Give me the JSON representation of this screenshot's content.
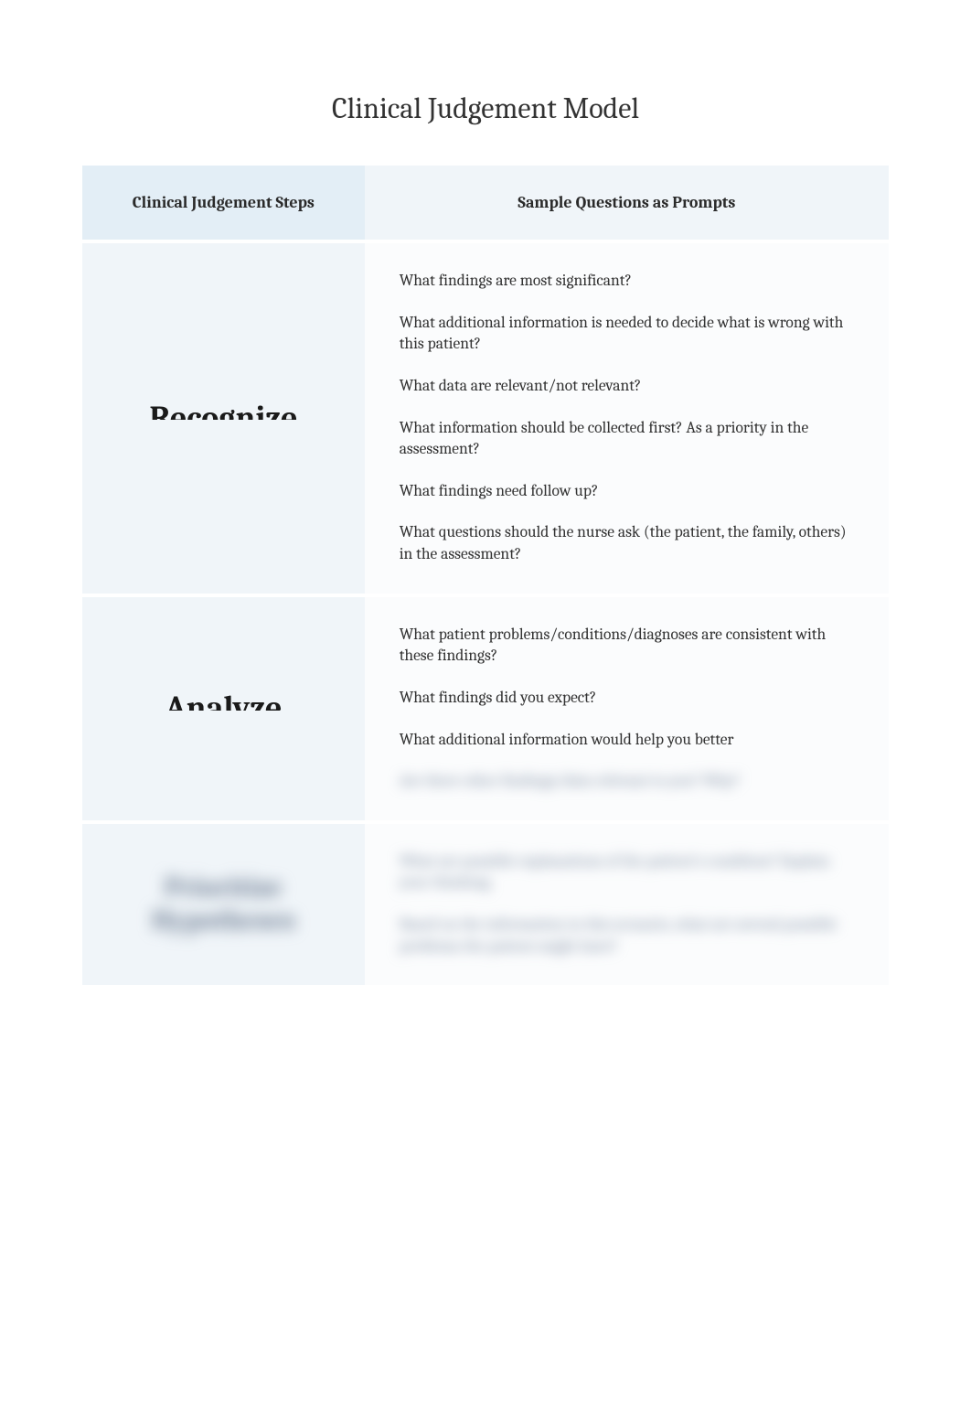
{
  "title": "Clinical Judgement Model",
  "columns": {
    "left": "Clinical Judgement Steps",
    "right": "Sample Questions as Prompts"
  },
  "rows": [
    {
      "step": "Recognize",
      "step_truncated": true,
      "questions": [
        "What findings are most significant?",
        "What additional information is needed to decide what is wrong with this patient?",
        "What data are relevant/not relevant?",
        "What information should be collected first? As a priority in the assessment?",
        "What findings need follow up?",
        "What questions should the nurse ask (the patient, the family, others) in the assessment?"
      ]
    },
    {
      "step": "Analyze",
      "step_truncated": true,
      "questions_visible": [
        "What patient problems/conditions/diagnoses are consistent with these findings?",
        "What findings did you expect?",
        "What additional information would help you better"
      ],
      "questions_blurred": [
        "Are there other findings/data relevant to you? Why?"
      ]
    },
    {
      "step_blurred": "Prioritize Hypotheses",
      "questions_blurred": [
        "What are possible explanations of the patient's condition? Explain your thinking.",
        "Based on the information in this scenario, what are several possible problems the patient might have?"
      ]
    }
  ],
  "colors": {
    "header_bg_left": "#e3eef6",
    "header_bg_right": "#f0f5f9",
    "cell_bg_left": "#f0f5f9",
    "cell_bg_right": "#fbfcfd",
    "text": "#333333",
    "blur_text": "#7a8aa0"
  }
}
